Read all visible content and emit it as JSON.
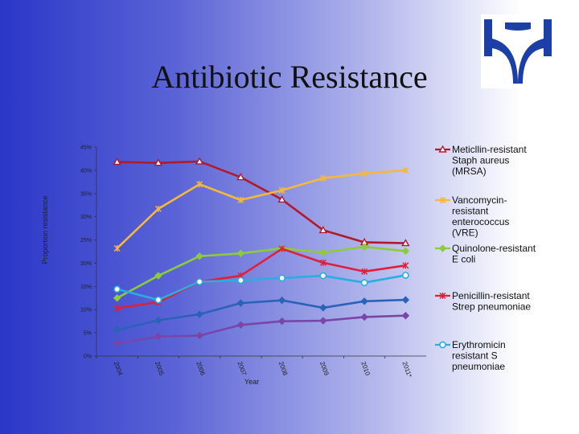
{
  "slide": {
    "title": "Antibiotic Resistance",
    "logo_icon": "org-logo-icon"
  },
  "chart_data": {
    "type": "line",
    "title": "Antibiotic Resistance",
    "xlabel": "Year",
    "ylabel": "Proportion resistance",
    "categories": [
      "2004",
      "2005",
      "2006",
      "2007",
      "2008",
      "2009",
      "2010",
      "2011*"
    ],
    "ylim": [
      0,
      45
    ],
    "yticks": [
      "0%",
      "5%",
      "10%",
      "15%",
      "20%",
      "25%",
      "30%",
      "35%",
      "40%",
      "45%"
    ],
    "grid": false,
    "legend_position": "right",
    "series": [
      {
        "name": "Meticllin-resistant Staph aureus (MRSA)",
        "color": "#b01a2a",
        "marker": "triangle",
        "values": [
          41.8,
          41.6,
          41.9,
          38.5,
          33.7,
          27.1,
          24.5,
          24.3
        ]
      },
      {
        "name": "Vancomycin-resistant enterococcus (VRE)",
        "color": "#f5b83c",
        "marker": "star",
        "values": [
          23.2,
          31.7,
          37.0,
          33.6,
          35.7,
          38.3,
          39.3,
          40.0
        ]
      },
      {
        "name": "Quinolone-resistant E coli",
        "color": "#8ccc3c",
        "marker": "diamond",
        "values": [
          12.5,
          17.3,
          21.5,
          22.1,
          23.2,
          22.3,
          23.5,
          22.6
        ]
      },
      {
        "name": "Penicillin-resistant Strep pneumoniae",
        "color": "#e0203a",
        "marker": "star",
        "values": [
          10.3,
          11.6,
          16.0,
          17.3,
          23.1,
          20.1,
          18.2,
          19.5
        ]
      },
      {
        "name": "Erythromicin resistant S pneumoniae",
        "color": "#28aee0",
        "marker": "circle",
        "values": [
          14.4,
          12.1,
          16.0,
          16.3,
          16.8,
          17.3,
          15.8,
          17.4
        ]
      },
      {
        "name": "",
        "color": "#2a62b8",
        "marker": "diamond",
        "values": [
          5.6,
          7.7,
          9.0,
          11.4,
          12.0,
          10.4,
          11.8,
          12.1
        ]
      },
      {
        "name": "",
        "color": "#7a45a8",
        "marker": "diamond",
        "values": [
          2.7,
          4.2,
          4.4,
          6.7,
          7.5,
          7.6,
          8.4,
          8.7
        ]
      }
    ]
  }
}
